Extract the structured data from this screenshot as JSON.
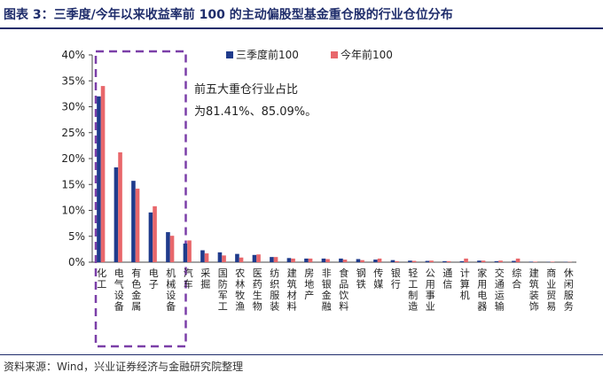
{
  "header": {
    "title": "图表 3：三季度/今年以来收益率前 100 的主动偏股型基金重仓股的行业仓位分布"
  },
  "footer": {
    "source": "资料来源：Wind，兴业证券经济与金融研究院整理"
  },
  "annotation": {
    "line1": "前五大重仓行业占比",
    "line2": "为81.41%、85.09%。"
  },
  "colors": {
    "series1": "#1f3b8c",
    "series2": "#e8676b",
    "highlight_box": "#7b3fa8",
    "title": "#1f2d6b"
  },
  "chart_data": {
    "type": "bar",
    "ylim": [
      0,
      40
    ],
    "yticks": [
      "0%",
      "5%",
      "10%",
      "15%",
      "20%",
      "25%",
      "30%",
      "35%",
      "40%"
    ],
    "categories": [
      "化工",
      "电气设备",
      "有色金属",
      "电子",
      "机械设备",
      "汽车",
      "采掘",
      "国防军工",
      "农林牧渔",
      "医药生物",
      "纺织服装",
      "建筑材料",
      "房地产",
      "非银金融",
      "食品饮料",
      "钢铁",
      "传媒",
      "银行",
      "轻工制造",
      "公用事业",
      "通信",
      "计算机",
      "家用电器",
      "交通运输",
      "综合",
      "建筑装饰",
      "商业贸易",
      "休闲服务"
    ],
    "series": [
      {
        "name": "三季度前100",
        "values": [
          32.0,
          18.3,
          15.7,
          9.6,
          5.8,
          3.6,
          2.3,
          1.9,
          1.6,
          1.4,
          1.0,
          0.8,
          0.7,
          0.7,
          0.7,
          0.6,
          0.5,
          0.4,
          0.3,
          0.25,
          0.2,
          0.2,
          0.3,
          0.2,
          0.25,
          0.1,
          0.05,
          0.05
        ]
      },
      {
        "name": "今年前100",
        "values": [
          34.0,
          21.2,
          14.2,
          10.8,
          5.1,
          4.2,
          1.7,
          1.3,
          0.9,
          1.5,
          1.0,
          0.7,
          0.7,
          0.6,
          0.5,
          0.4,
          0.7,
          0.2,
          0.25,
          0.3,
          0.2,
          0.7,
          0.3,
          0.3,
          0.7,
          0.1,
          0.1,
          0.05
        ]
      }
    ],
    "highlight_first_n": 5
  }
}
